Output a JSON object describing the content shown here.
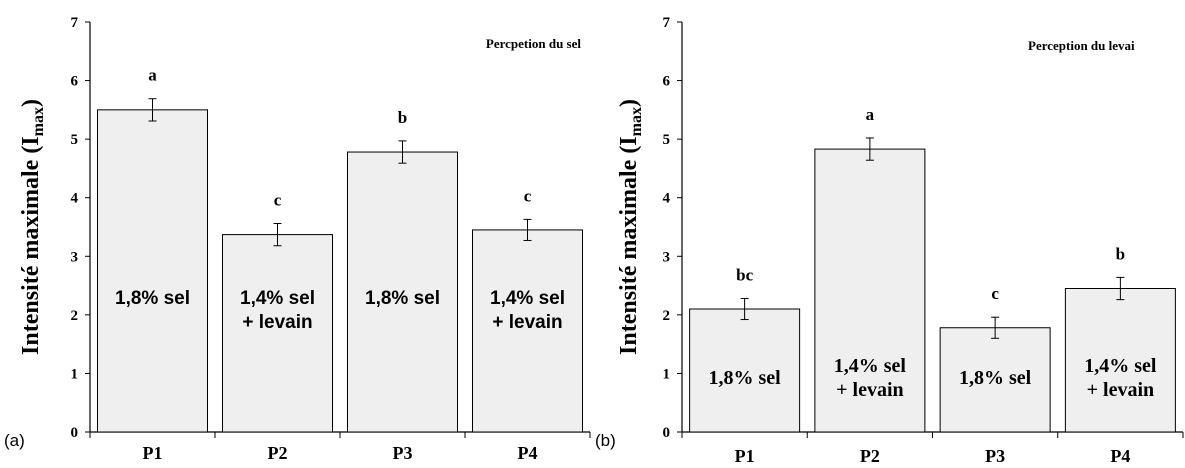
{
  "chart_data": [
    {
      "type": "bar",
      "panel_label": "(a)",
      "annotation": "Percpetion du sel",
      "ylabel": "Intensité maximale (I",
      "ylabel_sub": "max",
      "ylabel_close": ")",
      "ylim": [
        0,
        7
      ],
      "yticks": [
        "0",
        "1",
        "2",
        "3",
        "4",
        "5",
        "6",
        "7"
      ],
      "categories": [
        "P1",
        "P2",
        "P3",
        "P4"
      ],
      "values": [
        5.5,
        3.37,
        4.78,
        3.45
      ],
      "errors": [
        0.19,
        0.19,
        0.19,
        0.18
      ],
      "significance": [
        "a",
        "c",
        "b",
        "c"
      ],
      "bar_labels": [
        [
          "1,8% sel"
        ],
        [
          "1,4% sel",
          "+ levain"
        ],
        [
          "1,8% sel"
        ],
        [
          "1,4% sel",
          "+ levain"
        ]
      ],
      "bar_color": "#efefef",
      "grid": false
    },
    {
      "type": "bar",
      "panel_label": "(b)",
      "annotation": "Perception du levai",
      "ylabel": "Intensité maximale (I",
      "ylabel_sub": "max",
      "ylabel_close": ")",
      "ylim": [
        0,
        7
      ],
      "yticks": [
        "0",
        "1",
        "2",
        "3",
        "4",
        "5",
        "6",
        "7"
      ],
      "categories": [
        "P1",
        "P2",
        "P3",
        "P4"
      ],
      "values": [
        2.1,
        4.83,
        1.78,
        2.45
      ],
      "errors": [
        0.18,
        0.19,
        0.18,
        0.19
      ],
      "significance": [
        "bc",
        "a",
        "c",
        "b"
      ],
      "bar_labels": [
        [
          "1,8% sel"
        ],
        [
          "1,4% sel",
          "+ levain"
        ],
        [
          "1,8% sel"
        ],
        [
          "1,4% sel",
          "+ levain"
        ]
      ],
      "bar_color": "#efefef",
      "grid": false
    }
  ]
}
